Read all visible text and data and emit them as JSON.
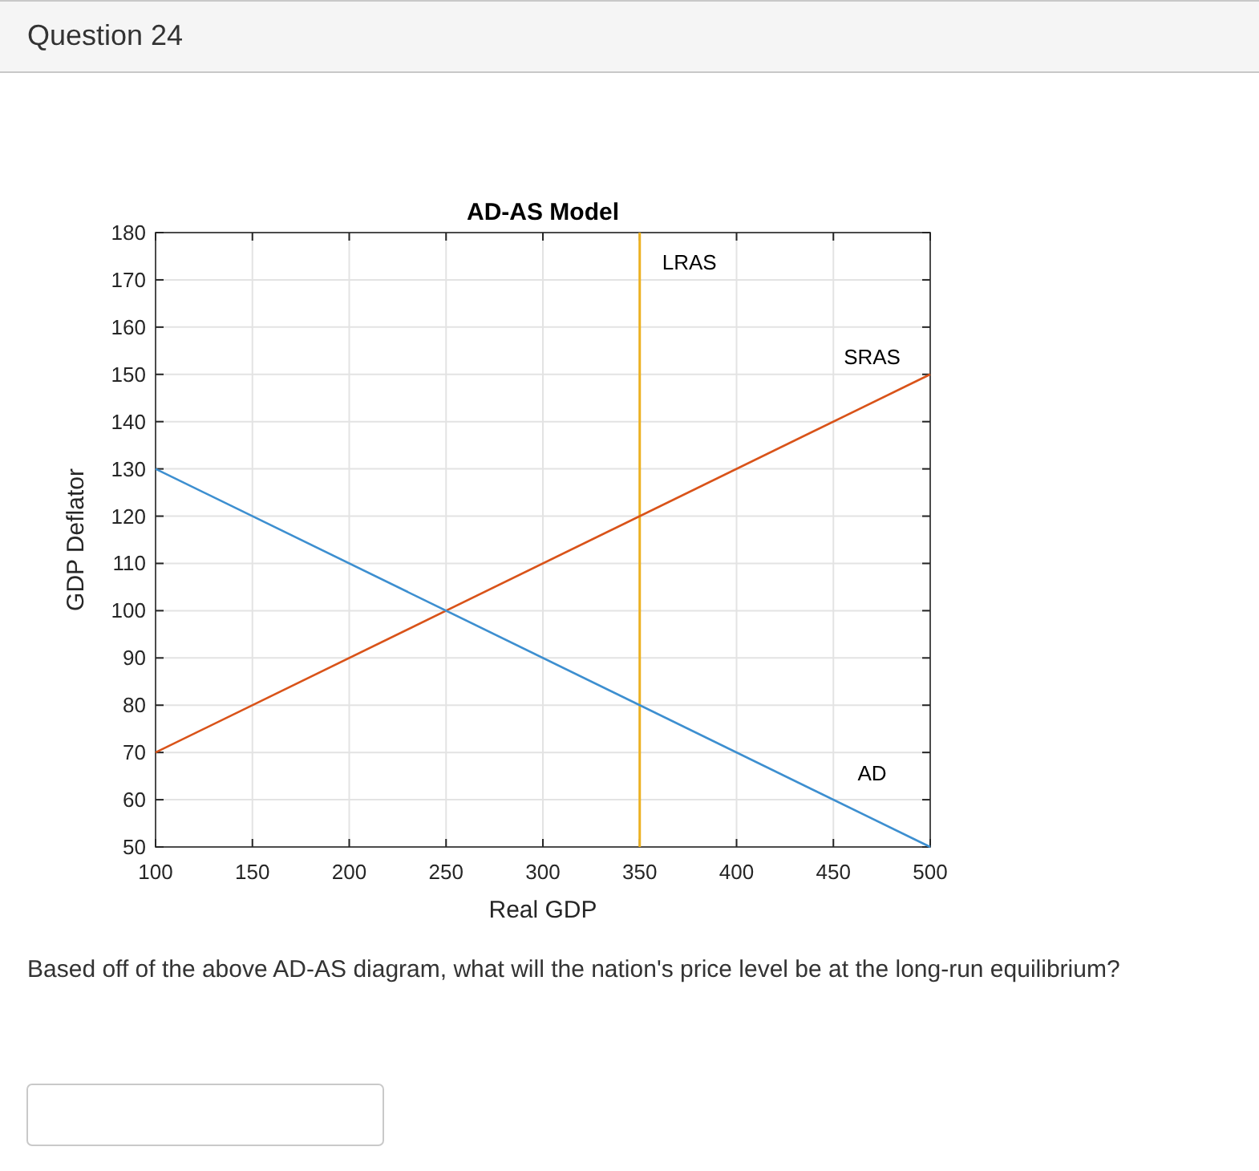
{
  "chart_data": {
    "type": "line",
    "title": "AD-AS Model",
    "xlabel": "Real GDP",
    "ylabel": "GDP Deflator",
    "annotations": [
      "Question 24",
      "Based off of the above AD-AS diagram, what will the nation's price level be at the long-run equilibrium?"
    ],
    "x": [
      100,
      500
    ],
    "series": [
      {
        "name": "SRAS",
        "color": "#d95319",
        "values": [
          70,
          150
        ]
      },
      {
        "name": "AD",
        "color": "#3d8fd0",
        "values": [
          130,
          50
        ]
      }
    ],
    "ref_lines": [
      {
        "axis": "x",
        "value": 350,
        "label": "LRAS",
        "color": "#edb120"
      }
    ],
    "xlim": [
      100,
      500
    ],
    "xticks": [
      100,
      150,
      200,
      250,
      300,
      350,
      400,
      450,
      500
    ],
    "ylim": [
      50,
      180
    ],
    "yticks": [
      50,
      60,
      70,
      80,
      90,
      100,
      110,
      120,
      130,
      140,
      150,
      160,
      170,
      180
    ],
    "grid": true,
    "line_style": "solid",
    "marker": "none"
  }
}
